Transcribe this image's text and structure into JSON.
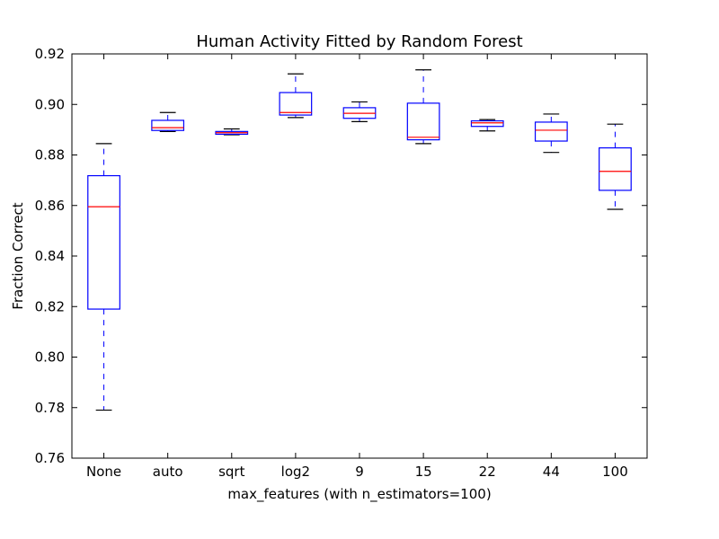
{
  "chart_data": {
    "type": "box",
    "title": "Human Activity Fitted by Random Forest",
    "xlabel": "max_features (with n_estimators=100)",
    "ylabel": "Fraction Correct",
    "ylim": [
      0.76,
      0.92
    ],
    "yticks": [
      "0.76",
      "0.78",
      "0.80",
      "0.82",
      "0.84",
      "0.86",
      "0.88",
      "0.90",
      "0.92"
    ],
    "categories": [
      "None",
      "auto",
      "sqrt",
      "log2",
      "9",
      "15",
      "22",
      "44",
      "100"
    ],
    "boxes": [
      {
        "whisker_low": 0.779,
        "q1": 0.819,
        "median": 0.8595,
        "q3": 0.8718,
        "whisker_high": 0.8845
      },
      {
        "whisker_low": 0.8893,
        "q1": 0.8897,
        "median": 0.8908,
        "q3": 0.8937,
        "whisker_high": 0.8968
      },
      {
        "whisker_low": 0.888,
        "q1": 0.8882,
        "median": 0.8888,
        "q3": 0.8893,
        "whisker_high": 0.8903
      },
      {
        "whisker_low": 0.8948,
        "q1": 0.8958,
        "median": 0.8968,
        "q3": 0.9047,
        "whisker_high": 0.9121
      },
      {
        "whisker_low": 0.8932,
        "q1": 0.8945,
        "median": 0.8965,
        "q3": 0.8987,
        "whisker_high": 0.901
      },
      {
        "whisker_low": 0.8845,
        "q1": 0.886,
        "median": 0.887,
        "q3": 0.9005,
        "whisker_high": 0.9137
      },
      {
        "whisker_low": 0.8895,
        "q1": 0.8913,
        "median": 0.8927,
        "q3": 0.8935,
        "whisker_high": 0.894
      },
      {
        "whisker_low": 0.881,
        "q1": 0.8855,
        "median": 0.8898,
        "q3": 0.893,
        "whisker_high": 0.8962
      },
      {
        "whisker_low": 0.8585,
        "q1": 0.866,
        "median": 0.8735,
        "q3": 0.8828,
        "whisker_high": 0.8922
      }
    ],
    "colors": {
      "box": "#0000ff",
      "median": "#ff0000",
      "whisker": "#0000ff",
      "cap": "#000000",
      "axes": "#000000"
    }
  }
}
